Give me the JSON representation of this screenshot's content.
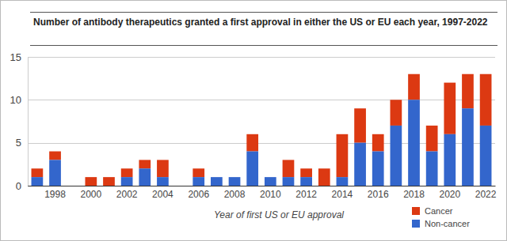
{
  "chart_data": {
    "type": "bar",
    "title": "Number of antibody therapeutics granted a first approval in either the US or EU each year, 1997-2022",
    "x_label": "Year of first US or EU approval",
    "categories": [
      null,
      "1998",
      null,
      "2000",
      null,
      "2002",
      null,
      "2004",
      null,
      "2006",
      null,
      "2008",
      null,
      "2010",
      null,
      "2012",
      null,
      "2014",
      null,
      "2016",
      null,
      "2018",
      null,
      "2020",
      null,
      "2022"
    ],
    "series": [
      {
        "name": "Cancer",
        "color": "#dc3912",
        "values": [
          1,
          1,
          0,
          1,
          1,
          1,
          1,
          2,
          0,
          1,
          0,
          0,
          2,
          0,
          2,
          1,
          2,
          5,
          4,
          2,
          3,
          3,
          3,
          6,
          4,
          6
        ]
      },
      {
        "name": "Non-cancer",
        "color": "#3366cc",
        "values": [
          1,
          3,
          0,
          0,
          0,
          1,
          2,
          1,
          0,
          1,
          1,
          1,
          4,
          1,
          1,
          1,
          0,
          1,
          5,
          4,
          7,
          10,
          4,
          6,
          9,
          7
        ]
      }
    ],
    "stacked": true,
    "ylim": [
      0,
      15
    ],
    "yticks": [
      0,
      5,
      10,
      15
    ],
    "grid": true,
    "legend": "lower right"
  }
}
